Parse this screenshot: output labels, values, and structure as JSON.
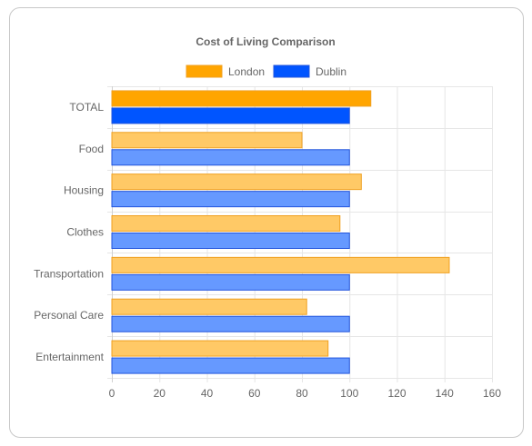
{
  "chart_data": {
    "type": "bar",
    "orientation": "horizontal",
    "title": "Cost of Living Comparison",
    "categories": [
      "TOTAL",
      "Food",
      "Housing",
      "Clothes",
      "Transportation",
      "Personal Care",
      "Entertainment"
    ],
    "series": [
      {
        "name": "London",
        "values": [
          109,
          80,
          105,
          96,
          142,
          82,
          91
        ],
        "color": "#FFA500",
        "fill_light": "#FFC966",
        "border": "#F0A020"
      },
      {
        "name": "Dublin",
        "values": [
          100,
          100,
          100,
          100,
          100,
          100,
          100
        ],
        "color": "#0055FF",
        "fill_light": "#6699FF",
        "border": "#2255DD"
      }
    ],
    "highlighted_category": "TOTAL",
    "xlim": [
      0,
      160
    ],
    "xticks": [
      0,
      20,
      40,
      60,
      80,
      100,
      120,
      140,
      160
    ],
    "grid": true,
    "legend_position": "top"
  }
}
